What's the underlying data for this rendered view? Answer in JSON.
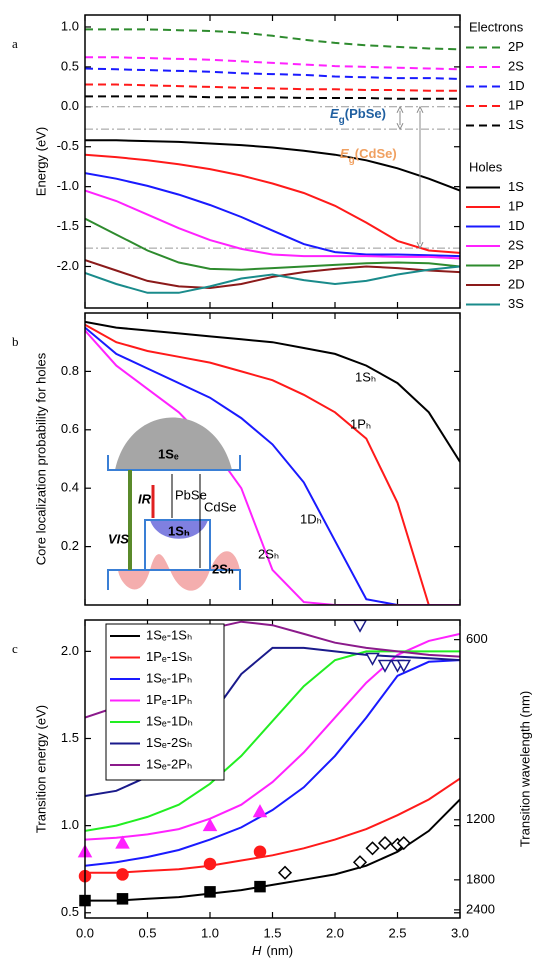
{
  "chart_data": [
    {
      "type": "line",
      "panel_label": "a",
      "y_label": "Energy (eV)",
      "xlim": [
        0,
        3
      ],
      "ylim": [
        -2.52,
        1.15
      ],
      "yticks": [
        {
          "value": 1,
          "label": "1.0"
        },
        0.5,
        {
          "value": 0,
          "label": "0.0"
        },
        -0.5,
        {
          "value": -1,
          "label": "-1.0"
        },
        -1.5,
        {
          "value": -2,
          "label": "-2.0"
        }
      ],
      "x": [
        0,
        0.25,
        0.5,
        0.75,
        1,
        1.25,
        1.5,
        1.75,
        2,
        2.25,
        2.5,
        2.75,
        3
      ],
      "legend_titles": [
        "Electrons",
        "Holes"
      ],
      "series": [
        {
          "name": "2P",
          "group": 0,
          "dash": true,
          "color": "#2e8b2e",
          "values": [
            0.97,
            0.97,
            0.97,
            0.96,
            0.95,
            0.93,
            0.89,
            0.84,
            0.8,
            0.77,
            0.75,
            0.73,
            0.72
          ]
        },
        {
          "name": "2S",
          "group": 0,
          "dash": true,
          "color": "#ff22ff",
          "values": [
            0.62,
            0.62,
            0.61,
            0.6,
            0.59,
            0.57,
            0.55,
            0.53,
            0.51,
            0.5,
            0.49,
            0.48,
            0.47
          ]
        },
        {
          "name": "1D",
          "group": 0,
          "dash": true,
          "color": "#1a1aff",
          "values": [
            0.48,
            0.47,
            0.46,
            0.45,
            0.44,
            0.42,
            0.41,
            0.4,
            0.38,
            0.37,
            0.36,
            0.36,
            0.35
          ]
        },
        {
          "name": "1P",
          "group": 0,
          "dash": true,
          "color": "#ff1a1a",
          "values": [
            0.28,
            0.28,
            0.27,
            0.26,
            0.25,
            0.24,
            0.23,
            0.22,
            0.22,
            0.21,
            0.21,
            0.2,
            0.2
          ]
        },
        {
          "name": "1S",
          "group": 0,
          "dash": true,
          "color": "#000000",
          "values": [
            0.13,
            0.13,
            0.13,
            0.13,
            0.12,
            0.12,
            0.12,
            0.11,
            0.11,
            0.11,
            0.1,
            0.1,
            0.1
          ]
        },
        {
          "name": "1S",
          "group": 1,
          "dash": false,
          "color": "#000000",
          "values": [
            -0.42,
            -0.42,
            -0.43,
            -0.44,
            -0.46,
            -0.48,
            -0.51,
            -0.55,
            -0.6,
            -0.67,
            -0.77,
            -0.9,
            -1.05
          ]
        },
        {
          "name": "1P",
          "group": 1,
          "dash": false,
          "color": "#ff1a1a",
          "values": [
            -0.6,
            -0.63,
            -0.67,
            -0.72,
            -0.78,
            -0.86,
            -0.96,
            -1.08,
            -1.24,
            -1.45,
            -1.68,
            -1.8,
            -1.83
          ]
        },
        {
          "name": "1D",
          "group": 1,
          "dash": false,
          "color": "#1a1aff",
          "values": [
            -0.83,
            -0.9,
            -0.99,
            -1.1,
            -1.23,
            -1.38,
            -1.55,
            -1.72,
            -1.82,
            -1.85,
            -1.85,
            -1.86,
            -1.87
          ]
        },
        {
          "name": "2S",
          "group": 1,
          "dash": false,
          "color": "#ff22ff",
          "values": [
            -1.05,
            -1.18,
            -1.35,
            -1.52,
            -1.67,
            -1.78,
            -1.85,
            -1.87,
            -1.87,
            -1.87,
            -1.88,
            -1.88,
            -1.9
          ]
        },
        {
          "name": "2P",
          "group": 1,
          "dash": false,
          "color": "#2e8b2e",
          "values": [
            -1.4,
            -1.6,
            -1.8,
            -1.95,
            -2.03,
            -2.04,
            -2.02,
            -2.0,
            -1.98,
            -1.96,
            -1.95,
            -1.96,
            -2.0
          ]
        },
        {
          "name": "2D",
          "group": 1,
          "dash": false,
          "color": "#8b1a1a",
          "values": [
            -1.92,
            -2.05,
            -2.18,
            -2.25,
            -2.27,
            -2.22,
            -2.13,
            -2.07,
            -2.03,
            -2.0,
            -2.02,
            -2.05,
            -2.07
          ]
        },
        {
          "name": "3S",
          "group": 1,
          "dash": false,
          "color": "#1a8b8b",
          "values": [
            -2.08,
            -2.22,
            -2.33,
            -2.33,
            -2.25,
            -2.15,
            -2.1,
            -2.17,
            -2.22,
            -2.18,
            -2.1,
            -2.04,
            -2.0
          ]
        }
      ],
      "ref_lines": [
        0,
        -0.28,
        -1.77
      ],
      "annotations": [
        {
          "text": "E",
          "sub": "g",
          "tail": "(PbSe)",
          "color": "#1f5fa0"
        },
        {
          "text": "E",
          "sub": "g",
          "tail": "(CdSe)",
          "color": "#f0a060"
        }
      ]
    },
    {
      "type": "line",
      "panel_label": "b",
      "y_label": "Core localization probability for holes",
      "xlim": [
        0,
        3
      ],
      "ylim": [
        0,
        1
      ],
      "yticks": [
        0.2,
        0.4,
        0.6,
        0.8
      ],
      "x": [
        0,
        0.25,
        0.5,
        0.75,
        1,
        1.25,
        1.5,
        1.75,
        2,
        2.25,
        2.5,
        2.75,
        3
      ],
      "series": [
        {
          "name": "1Sₕ",
          "color": "#000000",
          "values": [
            0.97,
            0.95,
            0.94,
            0.93,
            0.92,
            0.91,
            0.9,
            0.88,
            0.86,
            0.82,
            0.76,
            0.66,
            0.49
          ]
        },
        {
          "name": "1Pₕ",
          "color": "#ff1a1a",
          "values": [
            0.96,
            0.9,
            0.87,
            0.85,
            0.83,
            0.8,
            0.77,
            0.72,
            0.66,
            0.57,
            0.35,
            0.0,
            0.0
          ]
        },
        {
          "name": "1Dₕ",
          "color": "#1a1aff",
          "values": [
            0.95,
            0.86,
            0.81,
            0.76,
            0.71,
            0.64,
            0.55,
            0.42,
            0.22,
            0.02,
            0,
            0,
            0
          ]
        },
        {
          "name": "2Sₕ",
          "color": "#ff22ff",
          "values": [
            0.94,
            0.82,
            0.74,
            0.66,
            0.55,
            0.4,
            0.12,
            0.01,
            0,
            0,
            0,
            0,
            0
          ]
        }
      ],
      "inset_labels": {
        "e_level": "1Sₑ",
        "ir": "IR",
        "pbse": "PbSe",
        "cdse": "CdSe",
        "vis": "VIS",
        "h1": "1Sₕ",
        "h2": "2Sₕ"
      }
    },
    {
      "type": "line",
      "panel_label": "c",
      "y_label": "Transition energy (eV)",
      "y2_label": "Transition wavelength (nm)",
      "x_label": {
        "var": "H",
        "unit": "(nm)"
      },
      "xlim": [
        0,
        3
      ],
      "xticks": [
        {
          "value": 0,
          "label": "0.0"
        },
        0.5,
        {
          "value": 1,
          "label": "1.0"
        },
        1.5,
        {
          "value": 2,
          "label": "2.0"
        },
        2.5,
        {
          "value": 3,
          "label": "3.0"
        }
      ],
      "ylim": [
        0.47,
        2.18
      ],
      "yticks": [
        0.5,
        {
          "value": 1,
          "label": "1.0"
        },
        1.5,
        {
          "value": 2,
          "label": "2.0"
        }
      ],
      "y2lim": [
        2638,
        569
      ],
      "y2scale": "reciprocal",
      "y2ticks": [
        600,
        1200,
        1800,
        2400
      ],
      "legend": "upper left",
      "x": [
        0,
        0.25,
        0.5,
        0.75,
        1,
        1.25,
        1.5,
        1.75,
        2,
        2.25,
        2.5,
        2.75,
        3
      ],
      "series": [
        {
          "name": "1Sₑ-1Sₕ",
          "color": "#000000",
          "values": [
            0.57,
            0.57,
            0.58,
            0.59,
            0.61,
            0.63,
            0.66,
            0.69,
            0.72,
            0.77,
            0.85,
            0.97,
            1.15
          ]
        },
        {
          "name": "1Pₑ-1Sₕ",
          "color": "#ff1a1a",
          "values": [
            0.73,
            0.73,
            0.74,
            0.75,
            0.77,
            0.8,
            0.83,
            0.87,
            0.92,
            0.98,
            1.06,
            1.15,
            1.27
          ]
        },
        {
          "name": "1Sₑ-1Pₕ",
          "color": "#1a1aff",
          "values": [
            0.77,
            0.79,
            0.82,
            0.86,
            0.92,
            0.99,
            1.09,
            1.22,
            1.4,
            1.62,
            1.86,
            1.94,
            1.95
          ]
        },
        {
          "name": "1Pₑ-1Pₕ",
          "color": "#ff22ff",
          "values": [
            0.92,
            0.93,
            0.95,
            0.98,
            1.04,
            1.12,
            1.25,
            1.42,
            1.62,
            1.82,
            1.98,
            2.06,
            2.1
          ]
        },
        {
          "name": "1Sₑ-1Dₕ",
          "color": "#22ee22",
          "values": [
            0.97,
            1.0,
            1.05,
            1.12,
            1.24,
            1.4,
            1.6,
            1.8,
            1.95,
            2.0,
            2.0,
            2.0,
            2.0
          ]
        },
        {
          "name": "1Sₑ-2Sₕ",
          "color": "#1a1a8b",
          "values": [
            1.17,
            1.2,
            1.28,
            1.42,
            1.62,
            1.87,
            2.02,
            2.02,
            2.0,
            1.98,
            1.97,
            1.96,
            1.95
          ]
        },
        {
          "name": "1Sₑ-2Pₕ",
          "color": "#8b1a8b",
          "values": [
            1.62,
            1.68,
            1.92,
            2.04,
            2.13,
            2.17,
            2.15,
            2.1,
            2.05,
            2.02,
            2.0,
            1.98,
            1.97
          ]
        }
      ],
      "markers": [
        {
          "shape": "square",
          "color": "#000000",
          "filled": true,
          "x": [
            0,
            0.3,
            1.0,
            1.4
          ],
          "values": [
            0.57,
            0.58,
            0.62,
            0.65
          ]
        },
        {
          "shape": "circle",
          "color": "#ff1a1a",
          "filled": true,
          "x": [
            0,
            0.3,
            1.0,
            1.4
          ],
          "values": [
            0.71,
            0.72,
            0.78,
            0.85
          ]
        },
        {
          "shape": "triangle-up",
          "color": "#ff22ff",
          "filled": true,
          "x": [
            0,
            0.3,
            1.0,
            1.4
          ],
          "values": [
            0.85,
            0.9,
            1.0,
            1.08
          ]
        },
        {
          "shape": "diamond",
          "color": "#000000",
          "filled": false,
          "x": [
            1.6,
            2.2,
            2.3,
            2.4,
            2.5,
            2.55
          ],
          "values": [
            0.73,
            0.79,
            0.87,
            0.9,
            0.89,
            0.9
          ]
        },
        {
          "shape": "triangle-down",
          "color": "#1a1a8b",
          "filled": false,
          "x": [
            2.2,
            2.3,
            2.4,
            2.5,
            2.55
          ],
          "values": [
            2.15,
            1.96,
            1.92,
            1.92,
            1.92
          ]
        }
      ]
    }
  ]
}
